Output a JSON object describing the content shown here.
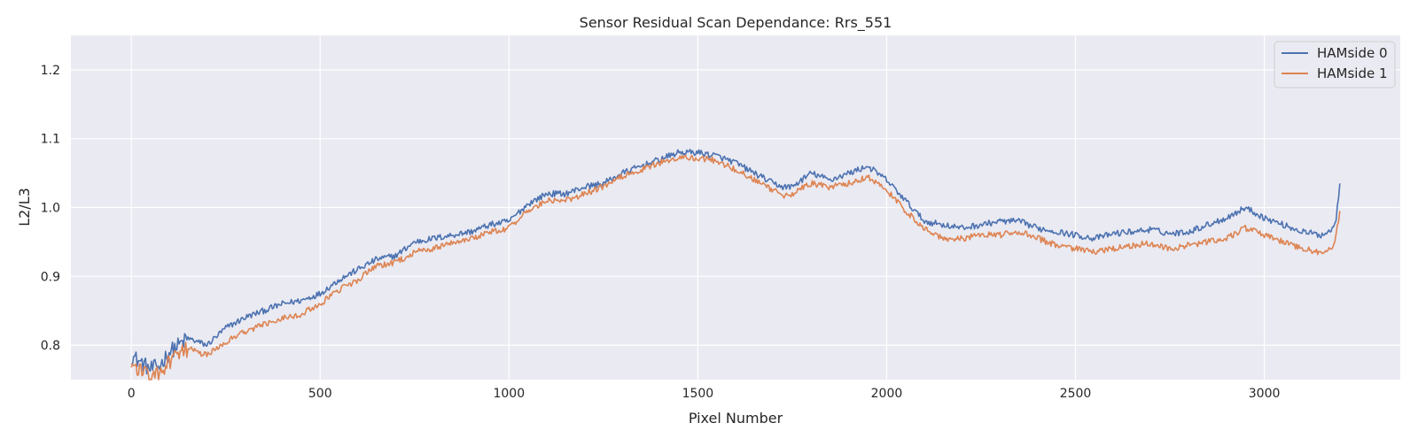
{
  "chart_data": {
    "type": "line",
    "title": "Sensor Residual Scan Dependance: Rrs_551",
    "xlabel": "Pixel Number",
    "ylabel": "L2/L3",
    "xlim": [
      -160,
      3360
    ],
    "ylim": [
      0.75,
      1.25
    ],
    "x_ticks": [
      0,
      500,
      1000,
      1500,
      2000,
      2500,
      3000
    ],
    "x_tick_labels": [
      "0",
      "500",
      "1000",
      "1500",
      "2000",
      "2500",
      "3000"
    ],
    "y_ticks": [
      0.8,
      0.9,
      1.0,
      1.1,
      1.2
    ],
    "y_tick_labels": [
      "0.8",
      "0.9",
      "1.0",
      "1.1",
      "1.2"
    ],
    "grid": true,
    "legend_position": "top-right",
    "plot_background": "#eaeaf2",
    "grid_color": "#ffffff",
    "series": [
      {
        "name": "HAMside 0",
        "color": "#4c72b0",
        "x": [
          0,
          25,
          50,
          75,
          100,
          150,
          200,
          250,
          300,
          350,
          400,
          450,
          500,
          550,
          600,
          650,
          700,
          750,
          800,
          850,
          900,
          950,
          1000,
          1050,
          1100,
          1150,
          1200,
          1250,
          1300,
          1350,
          1400,
          1450,
          1500,
          1550,
          1600,
          1650,
          1700,
          1725,
          1750,
          1800,
          1850,
          1900,
          1950,
          2000,
          2050,
          2100,
          2150,
          2200,
          2250,
          2300,
          2350,
          2400,
          2450,
          2500,
          2550,
          2600,
          2650,
          2700,
          2750,
          2800,
          2850,
          2900,
          2950,
          3000,
          3050,
          3100,
          3150,
          3180,
          3190,
          3200
        ],
        "y": [
          0.785,
          0.775,
          0.765,
          0.77,
          0.79,
          0.81,
          0.8,
          0.825,
          0.84,
          0.85,
          0.86,
          0.865,
          0.875,
          0.895,
          0.91,
          0.925,
          0.93,
          0.95,
          0.955,
          0.96,
          0.965,
          0.975,
          0.98,
          1.005,
          1.02,
          1.02,
          1.03,
          1.035,
          1.05,
          1.06,
          1.07,
          1.08,
          1.08,
          1.075,
          1.065,
          1.05,
          1.035,
          1.03,
          1.03,
          1.05,
          1.04,
          1.05,
          1.06,
          1.04,
          1.01,
          0.98,
          0.975,
          0.97,
          0.975,
          0.98,
          0.98,
          0.97,
          0.965,
          0.96,
          0.955,
          0.962,
          0.965,
          0.968,
          0.962,
          0.965,
          0.975,
          0.985,
          1.0,
          0.985,
          0.975,
          0.965,
          0.96,
          0.968,
          0.985,
          1.035
        ]
      },
      {
        "name": "HAMside 1",
        "color": "#dd8452",
        "x": [
          0,
          25,
          50,
          75,
          100,
          150,
          200,
          250,
          300,
          350,
          400,
          450,
          500,
          550,
          600,
          650,
          700,
          750,
          800,
          850,
          900,
          950,
          1000,
          1050,
          1100,
          1150,
          1200,
          1250,
          1300,
          1350,
          1400,
          1450,
          1500,
          1550,
          1600,
          1650,
          1700,
          1725,
          1750,
          1800,
          1850,
          1900,
          1950,
          2000,
          2050,
          2100,
          2150,
          2200,
          2250,
          2300,
          2350,
          2400,
          2450,
          2500,
          2550,
          2600,
          2650,
          2700,
          2750,
          2800,
          2850,
          2900,
          2950,
          3000,
          3050,
          3100,
          3150,
          3180,
          3190,
          3200
        ],
        "y": [
          0.77,
          0.765,
          0.752,
          0.758,
          0.775,
          0.795,
          0.785,
          0.805,
          0.82,
          0.83,
          0.84,
          0.845,
          0.86,
          0.88,
          0.895,
          0.915,
          0.92,
          0.935,
          0.94,
          0.95,
          0.955,
          0.965,
          0.97,
          0.995,
          1.01,
          1.01,
          1.02,
          1.03,
          1.045,
          1.055,
          1.065,
          1.072,
          1.072,
          1.068,
          1.055,
          1.04,
          1.025,
          1.018,
          1.02,
          1.035,
          1.03,
          1.035,
          1.045,
          1.025,
          0.995,
          0.97,
          0.955,
          0.955,
          0.96,
          0.96,
          0.965,
          0.955,
          0.945,
          0.94,
          0.935,
          0.94,
          0.945,
          0.948,
          0.94,
          0.945,
          0.95,
          0.955,
          0.97,
          0.96,
          0.95,
          0.94,
          0.935,
          0.94,
          0.96,
          0.995
        ]
      }
    ]
  }
}
